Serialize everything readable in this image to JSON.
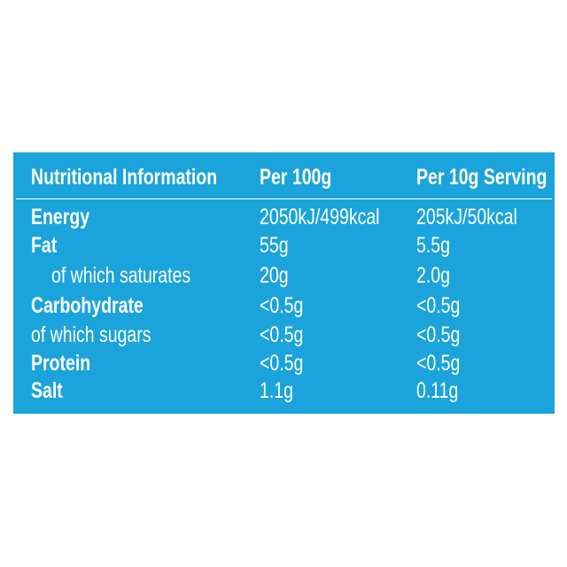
{
  "table": {
    "headers": [
      "Nutritional Information",
      "Per 100g",
      "Per 10g Serving"
    ],
    "rows": [
      [
        "Energy",
        "2050kJ/499kcal",
        "205kJ/50kcal"
      ],
      [
        "Fat",
        "55g",
        "5.5g"
      ],
      [
        "of which saturates",
        "20g",
        "2.0g"
      ],
      [
        "Carbohydrate",
        "<0.5g",
        "<0.5g"
      ],
      [
        "of which sugars",
        "<0.5g",
        "<0.5g"
      ],
      [
        "Protein",
        "<0.5g",
        "<0.5g"
      ],
      [
        "Salt",
        "1.1g",
        "0.11g"
      ]
    ]
  }
}
